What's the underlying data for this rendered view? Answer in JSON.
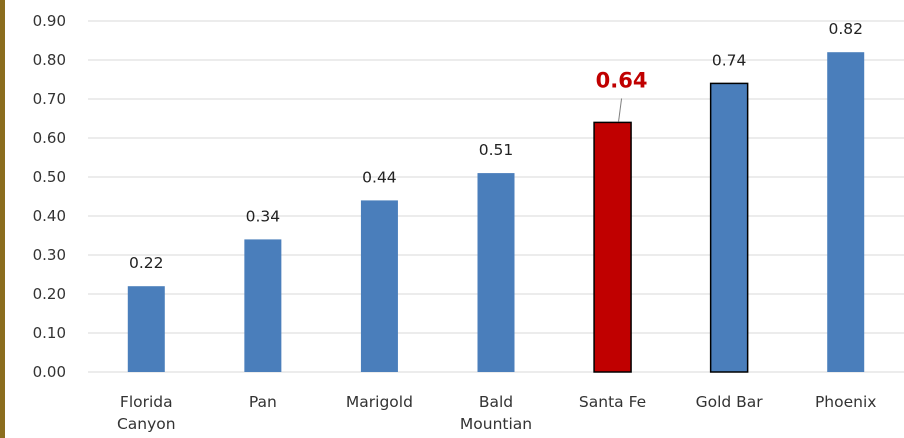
{
  "chart_data": {
    "type": "bar",
    "categories": [
      [
        "Florida",
        "Canyon"
      ],
      [
        "Pan"
      ],
      [
        "Marigold"
      ],
      [
        "Bald",
        "Mountian"
      ],
      [
        "Santa Fe"
      ],
      [
        "Gold Bar"
      ],
      [
        "Phoenix"
      ]
    ],
    "values": [
      0.22,
      0.34,
      0.44,
      0.51,
      0.64,
      0.74,
      0.82
    ],
    "data_labels": [
      "0.22",
      "0.34",
      "0.44",
      "0.51",
      "0.64",
      "0.74",
      "0.82"
    ],
    "y_ticks": [
      "0.00",
      "0.10",
      "0.20",
      "0.30",
      "0.40",
      "0.50",
      "0.60",
      "0.70",
      "0.80",
      "0.90"
    ],
    "ylim": [
      0,
      0.9
    ],
    "grid": true,
    "legend": "none",
    "highlighted_category": "Santa Fe",
    "outlined_categories": [
      "Santa Fe",
      "Gold Bar"
    ],
    "colors": {
      "bar": "#4a7ebb",
      "highlight_bar": "#c00000",
      "highlight_label": "#c00000",
      "bar_outline": "#000000",
      "grid": "#d9d9d9",
      "frame_border": "#8b6d1e"
    }
  }
}
